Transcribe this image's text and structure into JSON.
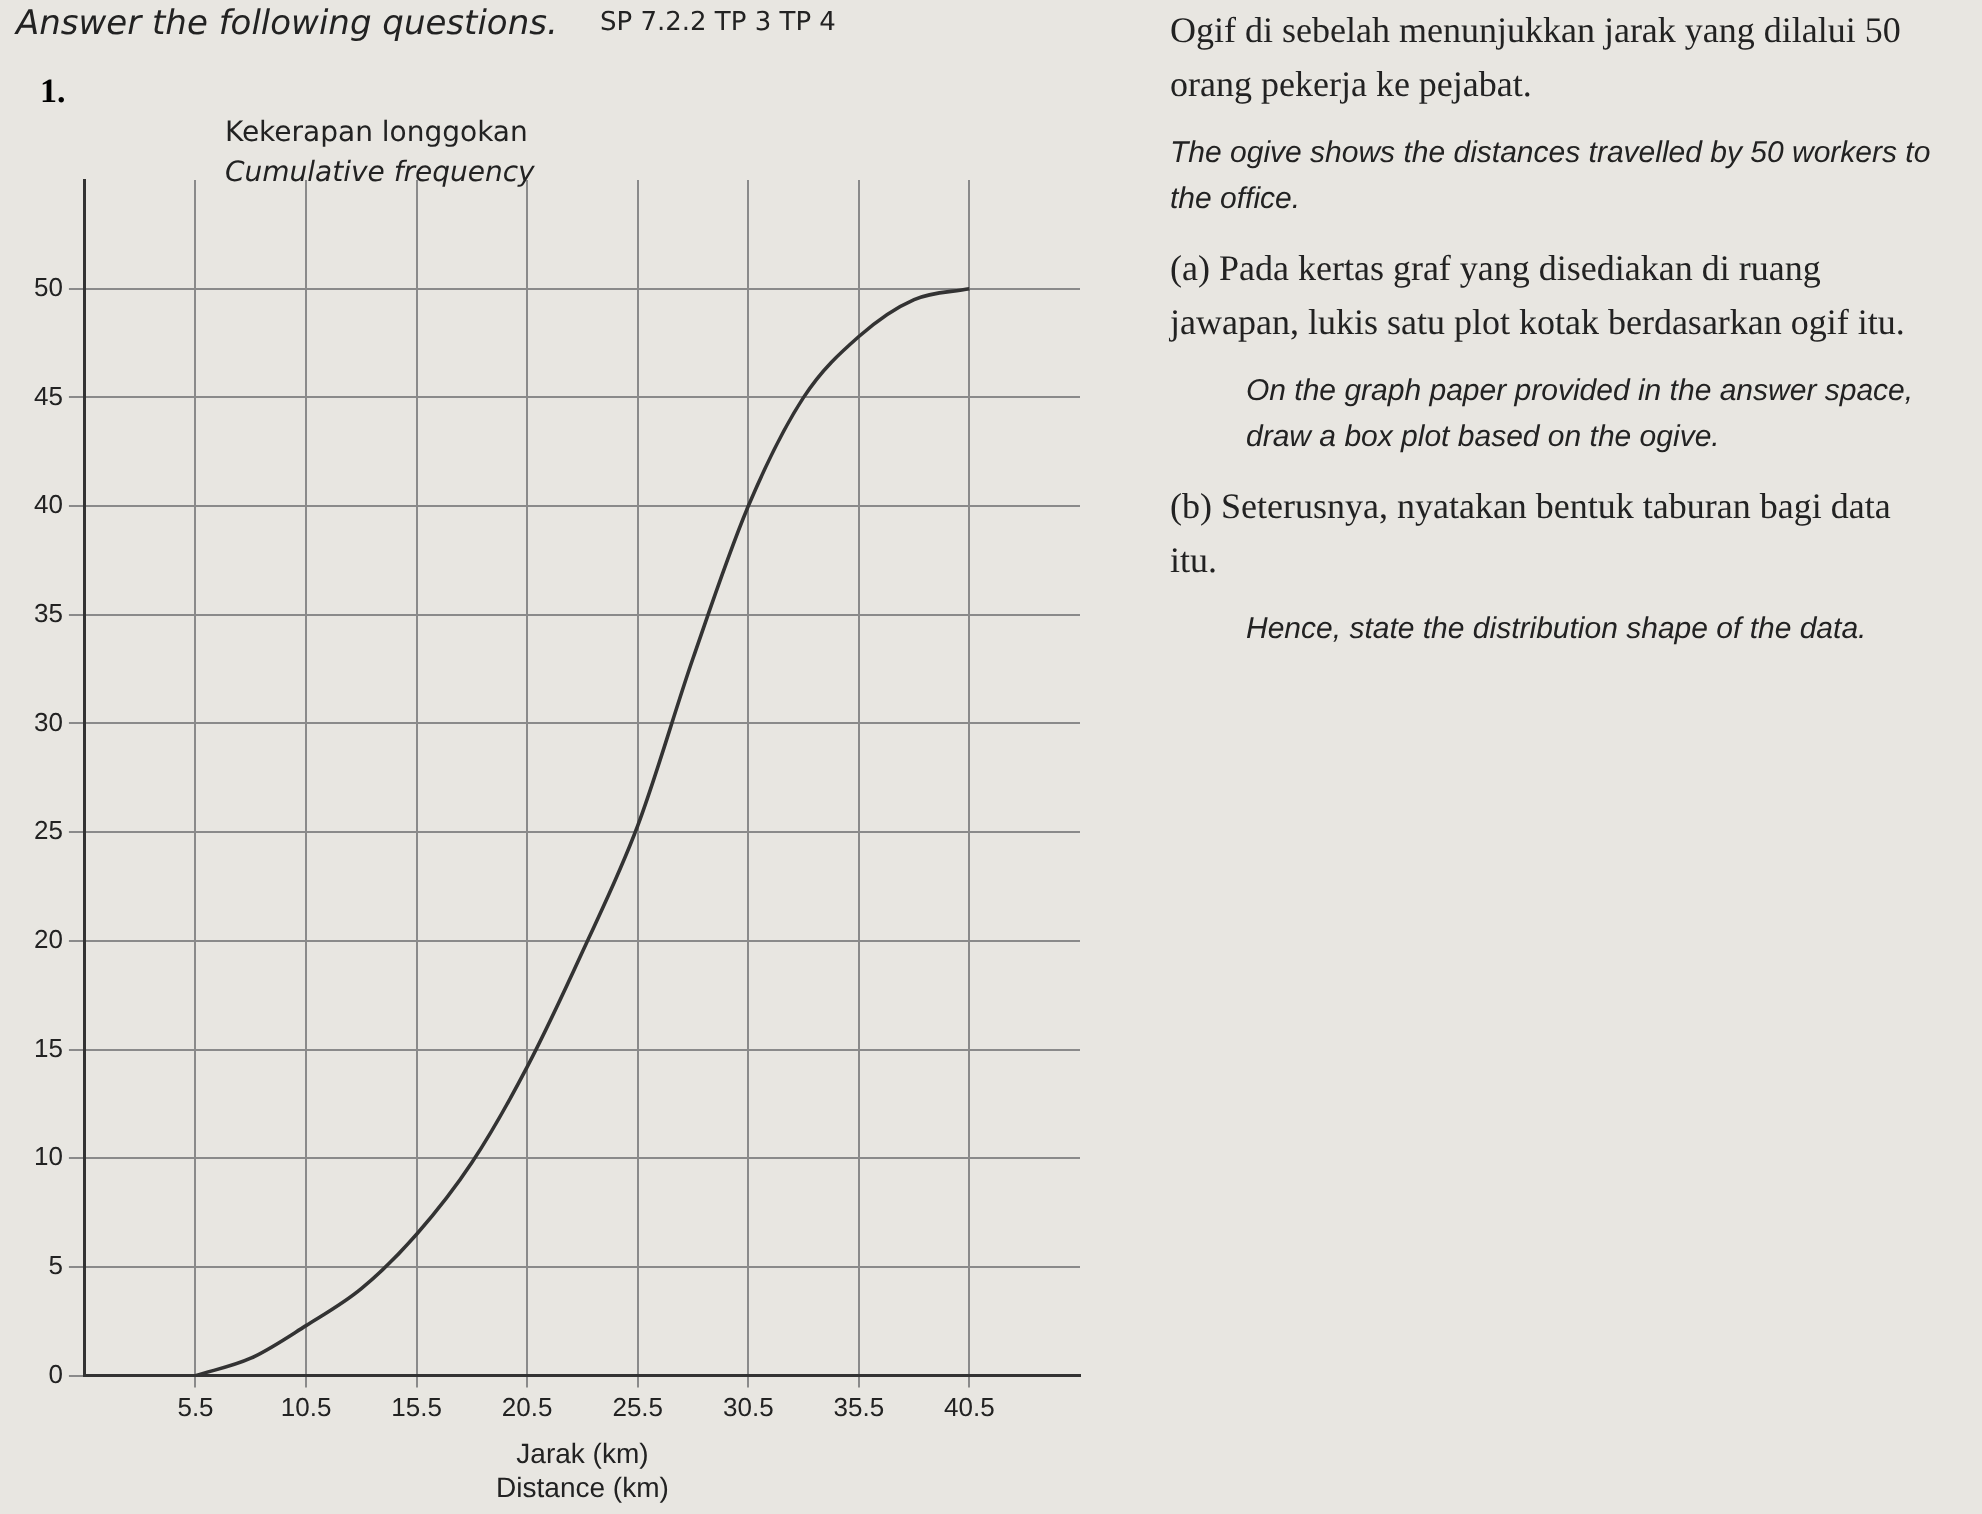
{
  "chart_data": {
    "type": "line",
    "title": "Answer the following questions.",
    "xlabel": "Jarak (km)\nDistance (km)",
    "ylabel": "Kekerapan longgokan\nCumulative frequency",
    "x": [
      5.5,
      8,
      10.5,
      13,
      15.5,
      18,
      20.5,
      23,
      25.5,
      28,
      30.5,
      33,
      35.5,
      38,
      40.5
    ],
    "series": [
      {
        "color": "#333333",
        "values": [
          0,
          0.8,
          2.3,
          4,
          6.5,
          9.8,
          14.2,
          19.5,
          25.3,
          33,
          40,
          45,
          47.8,
          49.5,
          50
        ]
      }
    ],
    "xlim": [
      0.5,
      45.5
    ],
    "xticks": [
      5.5,
      10.5,
      15.5,
      20.5,
      25.5,
      30.5,
      35.5,
      40.5
    ],
    "ylim": [
      0,
      55
    ],
    "yticks": [
      0,
      5,
      10,
      15,
      20,
      25,
      30,
      35,
      40,
      45,
      50
    ],
    "grid": true,
    "marker": "none",
    "line_style": "solid",
    "annotations": [
      "SP 7.2.2 TP 3 TP 4",
      "1.",
      "Ogif di sebelah menunjukkan jarak yang dilalui 50 orang pekerja ke pejabat.",
      "The ogive shows the distances travelled by 50 workers to the office.",
      "(a) Pada kertas graf yang disediakan di ruang jawapan, lukis satu plot kotak berdasarkan ogif itu.",
      "On the graph paper provided in the answer space, draw a box plot based on the ogive.",
      "(b) Seterusnya, nyatakan bentuk taburan bagi data itu.",
      "Hence, state the distribution shape of the data."
    ]
  }
}
